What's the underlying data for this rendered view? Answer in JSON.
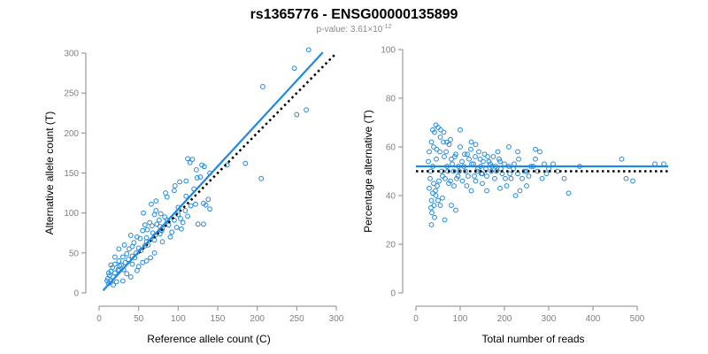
{
  "title": "rs1365776 - ENSG00000135899",
  "subtitle": {
    "prefix": "p-value: 3.61×10",
    "exponent": "-12"
  },
  "colors": {
    "points": "#1f88e0",
    "fit": "#1f88e0",
    "reference": "#000000"
  },
  "chart_data": [
    {
      "type": "scatter",
      "xlabel": "Reference allele count (C)",
      "ylabel": "Alternative allele count (T)",
      "xlim": [
        0,
        300
      ],
      "ylim": [
        0,
        300
      ],
      "xticks": [
        0,
        50,
        100,
        150,
        200,
        250,
        300
      ],
      "yticks": [
        0,
        50,
        100,
        150,
        200,
        250,
        300
      ],
      "grid": false,
      "fit_line": {
        "x": [
          5,
          283
        ],
        "y": [
          3,
          301
        ]
      },
      "reference_line": {
        "x": [
          50,
          300
        ],
        "y": [
          50,
          300
        ]
      },
      "points": [
        [
          265,
          304
        ],
        [
          247,
          281
        ],
        [
          207,
          258
        ],
        [
          262,
          229
        ],
        [
          250,
          223
        ],
        [
          205,
          143
        ],
        [
          112,
          168
        ],
        [
          118,
          167
        ],
        [
          115,
          163
        ],
        [
          130,
          160
        ],
        [
          133,
          158
        ],
        [
          123,
          154
        ],
        [
          128,
          145
        ],
        [
          140,
          150
        ],
        [
          185,
          162
        ],
        [
          162,
          160
        ],
        [
          124,
          144
        ],
        [
          110,
          140
        ],
        [
          102,
          139
        ],
        [
          95,
          128
        ],
        [
          138,
          117
        ],
        [
          132,
          112
        ],
        [
          122,
          111
        ],
        [
          116,
          109
        ],
        [
          109,
          103
        ],
        [
          100,
          98
        ],
        [
          112,
          96
        ],
        [
          103,
          93
        ],
        [
          84,
          125
        ],
        [
          86,
          120
        ],
        [
          72,
          103
        ],
        [
          78,
          99
        ],
        [
          70,
          98
        ],
        [
          83,
          95
        ],
        [
          86,
          91
        ],
        [
          76,
          91
        ],
        [
          64,
          88
        ],
        [
          73,
          86
        ],
        [
          58,
          85
        ],
        [
          67,
          84
        ],
        [
          77,
          83
        ],
        [
          80,
          80
        ],
        [
          61,
          79
        ],
        [
          55,
          78
        ],
        [
          68,
          75
        ],
        [
          77,
          74
        ],
        [
          48,
          70
        ],
        [
          60,
          69
        ],
        [
          52,
          68
        ],
        [
          70,
          66
        ],
        [
          60,
          64
        ],
        [
          44,
          63
        ],
        [
          58,
          59
        ],
        [
          42,
          58
        ],
        [
          50,
          56
        ],
        [
          38,
          55
        ],
        [
          47,
          50
        ],
        [
          35,
          49
        ],
        [
          42,
          46
        ],
        [
          30,
          45
        ],
        [
          37,
          42
        ],
        [
          25,
          40
        ],
        [
          33,
          38
        ],
        [
          20,
          36
        ],
        [
          28,
          35
        ],
        [
          17,
          32
        ],
        [
          24,
          29
        ],
        [
          15,
          27
        ],
        [
          20,
          25
        ],
        [
          13,
          22
        ],
        [
          18,
          20
        ],
        [
          11,
          18
        ],
        [
          15,
          15
        ],
        [
          12,
          12
        ],
        [
          10,
          15
        ],
        [
          25,
          28
        ],
        [
          26,
          34
        ],
        [
          31,
          29
        ],
        [
          45,
          44
        ],
        [
          53,
          53
        ],
        [
          62,
          60
        ],
        [
          71,
          72
        ],
        [
          79,
          78
        ],
        [
          88,
          85
        ],
        [
          95,
          91
        ],
        [
          100,
          107
        ],
        [
          106,
          88
        ],
        [
          135,
          110
        ],
        [
          140,
          105
        ],
        [
          90,
          70
        ],
        [
          60,
          40
        ],
        [
          50,
          33
        ],
        [
          70,
          50
        ],
        [
          80,
          64
        ],
        [
          92,
          76
        ],
        [
          98,
          82
        ],
        [
          72,
          115
        ],
        [
          66,
          111
        ],
        [
          56,
          100
        ],
        [
          40,
          72
        ],
        [
          32,
          60
        ],
        [
          25,
          55
        ],
        [
          35,
          24
        ],
        [
          48,
          28
        ],
        [
          55,
          38
        ],
        [
          65,
          44
        ],
        [
          42,
          36
        ],
        [
          20,
          45
        ],
        [
          15,
          35
        ],
        [
          12,
          25
        ],
        [
          40,
          20
        ],
        [
          30,
          15
        ],
        [
          22,
          14
        ],
        [
          18,
          10
        ],
        [
          125,
          86
        ],
        [
          132,
          86
        ],
        [
          104,
          80
        ],
        [
          110,
          121
        ],
        [
          96,
          134
        ],
        [
          120,
          130
        ]
      ]
    },
    {
      "type": "scatter",
      "xlabel": "Total number of reads",
      "ylabel": "Percentage alternative (T)",
      "xlim": [
        0,
        570
      ],
      "ylim": [
        0,
        100
      ],
      "xticks": [
        0,
        100,
        200,
        300,
        400,
        500
      ],
      "yticks": [
        0,
        20,
        40,
        60,
        80,
        100
      ],
      "grid": false,
      "fit_line": {
        "x": [
          0,
          570
        ],
        "y": [
          52,
          52
        ]
      },
      "reference_line": {
        "x": [
          0,
          570
        ],
        "y": [
          50,
          50
        ]
      },
      "points": [
        [
          30,
          58
        ],
        [
          35,
          62
        ],
        [
          38,
          67
        ],
        [
          42,
          66
        ],
        [
          28,
          54
        ],
        [
          33,
          50
        ],
        [
          40,
          45
        ],
        [
          45,
          40
        ],
        [
          50,
          38
        ],
        [
          36,
          33
        ],
        [
          42,
          31
        ],
        [
          35,
          28
        ],
        [
          55,
          36
        ],
        [
          65,
          30
        ],
        [
          48,
          44
        ],
        [
          60,
          48
        ],
        [
          70,
          52
        ],
        [
          80,
          55
        ],
        [
          90,
          57
        ],
        [
          100,
          60
        ],
        [
          110,
          57
        ],
        [
          120,
          55
        ],
        [
          130,
          53
        ],
        [
          140,
          51
        ],
        [
          150,
          49
        ],
        [
          160,
          48
        ],
        [
          170,
          50
        ],
        [
          180,
          52
        ],
        [
          190,
          54
        ],
        [
          200,
          53
        ],
        [
          210,
          52
        ],
        [
          220,
          51
        ],
        [
          230,
          49
        ],
        [
          240,
          47
        ],
        [
          250,
          50
        ],
        [
          260,
          52
        ],
        [
          270,
          55
        ],
        [
          280,
          58
        ],
        [
          290,
          53
        ],
        [
          300,
          51
        ],
        [
          55,
          64
        ],
        [
          62,
          62
        ],
        [
          68,
          58
        ],
        [
          75,
          61
        ],
        [
          85,
          50
        ],
        [
          95,
          48
        ],
        [
          105,
          46
        ],
        [
          115,
          44
        ],
        [
          125,
          42
        ],
        [
          135,
          46
        ],
        [
          145,
          55
        ],
        [
          155,
          57
        ],
        [
          165,
          54
        ],
        [
          175,
          56
        ],
        [
          185,
          58
        ],
        [
          195,
          49
        ],
        [
          205,
          44
        ],
        [
          215,
          47
        ],
        [
          225,
          40
        ],
        [
          235,
          42
        ],
        [
          38,
          41
        ],
        [
          44,
          42
        ],
        [
          52,
          46
        ],
        [
          58,
          50
        ],
        [
          66,
          47
        ],
        [
          74,
          45
        ],
        [
          82,
          53
        ],
        [
          88,
          56
        ],
        [
          96,
          52
        ],
        [
          104,
          54
        ],
        [
          112,
          50
        ],
        [
          118,
          48
        ],
        [
          126,
          53
        ],
        [
          134,
          56
        ],
        [
          142,
          58
        ],
        [
          148,
          49
        ],
        [
          158,
          51
        ],
        [
          168,
          53
        ],
        [
          178,
          47
        ],
        [
          188,
          55
        ],
        [
          30,
          43
        ],
        [
          32,
          47
        ],
        [
          38,
          52
        ],
        [
          46,
          55
        ],
        [
          54,
          58
        ],
        [
          64,
          56
        ],
        [
          72,
          50
        ],
        [
          78,
          46
        ],
        [
          86,
          44
        ],
        [
          92,
          47
        ],
        [
          98,
          50
        ],
        [
          108,
          52
        ],
        [
          116,
          57
        ],
        [
          124,
          59
        ],
        [
          132,
          48
        ],
        [
          138,
          50
        ],
        [
          146,
          52
        ],
        [
          152,
          54
        ],
        [
          162,
          56
        ],
        [
          172,
          52
        ],
        [
          182,
          50
        ],
        [
          192,
          51
        ],
        [
          202,
          47
        ],
        [
          212,
          49
        ],
        [
          222,
          53
        ],
        [
          232,
          55
        ],
        [
          245,
          50
        ],
        [
          255,
          48
        ],
        [
          265,
          52
        ],
        [
          275,
          50
        ],
        [
          285,
          47
        ],
        [
          295,
          49
        ],
        [
          310,
          53
        ],
        [
          320,
          50
        ],
        [
          335,
          47
        ],
        [
          345,
          41
        ],
        [
          370,
          52
        ],
        [
          465,
          55
        ],
        [
          475,
          47
        ],
        [
          490,
          46
        ],
        [
          540,
          53
        ],
        [
          560,
          53
        ],
        [
          45,
          69
        ],
        [
          50,
          68
        ],
        [
          56,
          67
        ],
        [
          63,
          66
        ],
        [
          40,
          60
        ],
        [
          47,
          59
        ],
        [
          70,
          62
        ],
        [
          78,
          63
        ],
        [
          100,
          67
        ],
        [
          125,
          62
        ],
        [
          135,
          61
        ],
        [
          210,
          60
        ],
        [
          230,
          58
        ],
        [
          270,
          59
        ],
        [
          150,
          45
        ],
        [
          160,
          42
        ],
        [
          190,
          43
        ],
        [
          250,
          44
        ],
        [
          60,
          39
        ],
        [
          80,
          36
        ],
        [
          90,
          34
        ],
        [
          35,
          38
        ],
        [
          34,
          35
        ],
        [
          41,
          36
        ]
      ]
    }
  ]
}
